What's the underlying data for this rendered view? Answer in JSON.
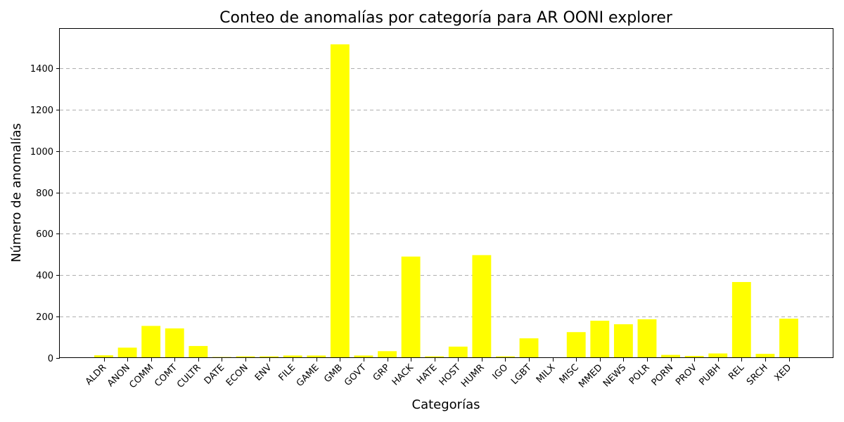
{
  "chart_data": {
    "type": "bar",
    "title": "Conteo de anomalías por categoría para AR OONI explorer",
    "xlabel": "Categorías",
    "ylabel": "Número de anomalías",
    "categories": [
      "ALDR",
      "ANON",
      "COMM",
      "COMT",
      "CULTR",
      "DATE",
      "ECON",
      "ENV",
      "FILE",
      "GAME",
      "GMB",
      "GOVT",
      "GRP",
      "HACK",
      "HATE",
      "HOST",
      "HUMR",
      "IGO",
      "LGBT",
      "MILX",
      "MISC",
      "MMED",
      "NEWS",
      "POLR",
      "PORN",
      "PROV",
      "PUBH",
      "REL",
      "SRCH",
      "XED"
    ],
    "values": [
      13,
      50,
      155,
      143,
      58,
      5,
      8,
      8,
      12,
      12,
      1515,
      12,
      33,
      490,
      8,
      55,
      497,
      8,
      95,
      0,
      125,
      180,
      163,
      187,
      15,
      10,
      22,
      367,
      20,
      190
    ],
    "ylim": [
      0,
      1590
    ],
    "yticks": [
      0,
      200,
      400,
      600,
      800,
      1000,
      1200,
      1400
    ],
    "grid": "y-dashed",
    "bar_color": "#ffff00",
    "legend": "none"
  }
}
